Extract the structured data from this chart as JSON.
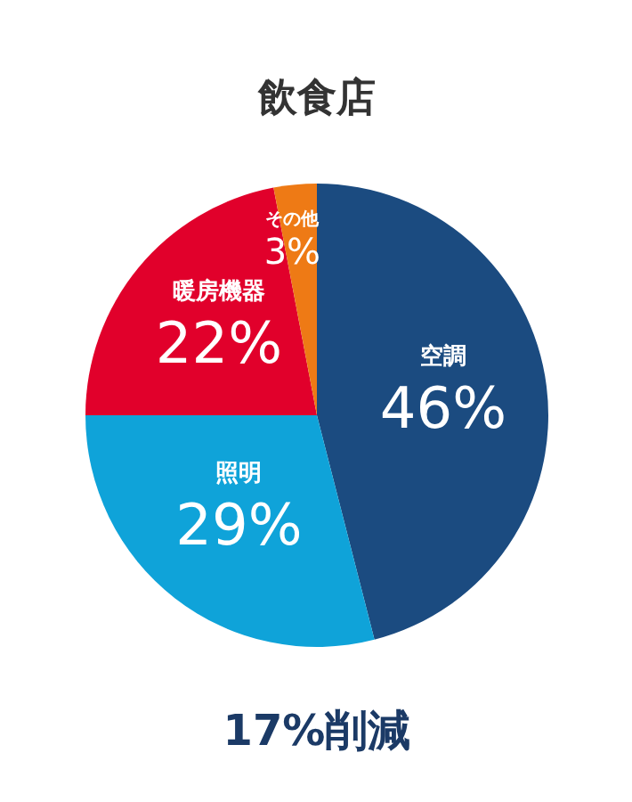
{
  "chart_data": {
    "type": "pie",
    "title": "飲食店",
    "categories": [
      "空調",
      "照明",
      "暖房機器",
      "その他"
    ],
    "values": [
      46,
      29,
      22,
      3
    ],
    "colors": [
      "#1b4b80",
      "#0fa3d9",
      "#e1002b",
      "#ee7a15"
    ],
    "value_labels": [
      "46%",
      "29%",
      "22%",
      "3%"
    ],
    "annotations": [
      "17%削減"
    ]
  }
}
